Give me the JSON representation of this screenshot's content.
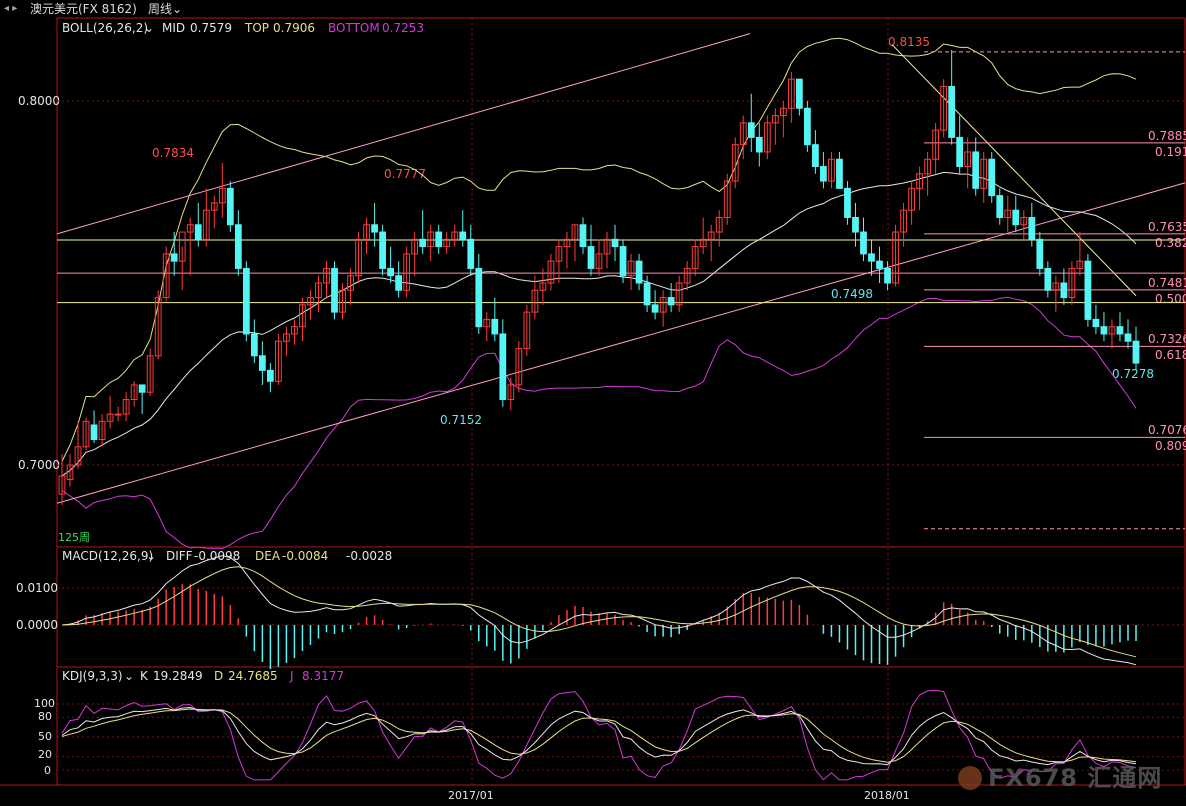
{
  "window": {
    "title": "澳元美元(FX 8162)",
    "period": "周线",
    "period_watermark": "125周",
    "brand_watermark": "FX678 汇通网"
  },
  "chart_data": [
    {
      "panel": "main",
      "type": "candlestick",
      "title": "澳元美元(FX 8162) 周线",
      "indicator": {
        "name": "BOLL(26,26,2)",
        "mid_label": "MID",
        "mid": "0.7579",
        "top_label": "TOP",
        "top": "0.7906",
        "bottom_label": "BOTTOM",
        "bottom": "0.7253"
      },
      "y_ticks": [
        "0.8000",
        "0.7000"
      ],
      "ylim": [
        0.688,
        0.82
      ],
      "x_ticks": [
        "2017/01",
        "2018/01"
      ],
      "price_labels": [
        {
          "text": "0.7834",
          "color": "red"
        },
        {
          "text": "0.7777",
          "color": "red"
        },
        {
          "text": "0.8135",
          "color": "red"
        },
        {
          "text": "0.7152",
          "color": "cyan"
        },
        {
          "text": "0.7498",
          "color": "cyan"
        },
        {
          "text": "0.7278",
          "color": "cyan"
        }
      ],
      "fib_levels": [
        {
          "price": 0.7885,
          "label": "0.7885",
          "ratio": "0.191"
        },
        {
          "price": 0.7635,
          "label": "0.7635",
          "ratio": "0.382"
        },
        {
          "price": 0.7481,
          "label": "0.7481",
          "ratio": "0.500"
        },
        {
          "price": 0.7326,
          "label": "0.7326",
          "ratio": "0.618"
        },
        {
          "price": 0.7076,
          "label": "0.7076",
          "ratio": "0.809"
        }
      ],
      "candles_ohlc": [
        [
          0.692,
          0.703,
          0.689,
          0.697
        ],
        [
          0.696,
          0.703,
          0.694,
          0.7
        ],
        [
          0.7,
          0.712,
          0.699,
          0.705
        ],
        [
          0.705,
          0.713,
          0.704,
          0.712
        ],
        [
          0.711,
          0.715,
          0.706,
          0.707
        ],
        [
          0.707,
          0.714,
          0.705,
          0.712
        ],
        [
          0.712,
          0.719,
          0.71,
          0.714
        ],
        [
          0.714,
          0.716,
          0.712,
          0.714
        ],
        [
          0.714,
          0.72,
          0.712,
          0.718
        ],
        [
          0.718,
          0.723,
          0.716,
          0.722
        ],
        [
          0.722,
          0.722,
          0.714,
          0.72
        ],
        [
          0.72,
          0.732,
          0.719,
          0.73
        ],
        [
          0.73,
          0.748,
          0.729,
          0.746
        ],
        [
          0.746,
          0.76,
          0.745,
          0.758
        ],
        [
          0.758,
          0.764,
          0.752,
          0.756
        ],
        [
          0.756,
          0.76,
          0.748,
          0.764
        ],
        [
          0.764,
          0.768,
          0.752,
          0.766
        ],
        [
          0.766,
          0.772,
          0.76,
          0.762
        ],
        [
          0.762,
          0.776,
          0.76,
          0.77
        ],
        [
          0.77,
          0.774,
          0.765,
          0.772
        ],
        [
          0.772,
          0.783,
          0.768,
          0.776
        ],
        [
          0.776,
          0.778,
          0.764,
          0.766
        ],
        [
          0.766,
          0.77,
          0.752,
          0.754
        ],
        [
          0.754,
          0.756,
          0.734,
          0.736
        ],
        [
          0.736,
          0.74,
          0.728,
          0.73
        ],
        [
          0.73,
          0.734,
          0.722,
          0.726
        ],
        [
          0.726,
          0.728,
          0.72,
          0.723
        ],
        [
          0.723,
          0.736,
          0.722,
          0.734
        ],
        [
          0.734,
          0.738,
          0.73,
          0.736
        ],
        [
          0.736,
          0.74,
          0.733,
          0.738
        ],
        [
          0.738,
          0.746,
          0.734,
          0.744
        ],
        [
          0.744,
          0.748,
          0.74,
          0.746
        ],
        [
          0.746,
          0.752,
          0.742,
          0.75
        ],
        [
          0.75,
          0.756,
          0.746,
          0.754
        ],
        [
          0.754,
          0.756,
          0.74,
          0.742
        ],
        [
          0.742,
          0.75,
          0.74,
          0.748
        ],
        [
          0.748,
          0.754,
          0.744,
          0.752
        ],
        [
          0.752,
          0.764,
          0.75,
          0.762
        ],
        [
          0.762,
          0.768,
          0.758,
          0.766
        ],
        [
          0.766,
          0.772,
          0.76,
          0.764
        ],
        [
          0.764,
          0.766,
          0.752,
          0.754
        ],
        [
          0.754,
          0.76,
          0.75,
          0.752
        ],
        [
          0.752,
          0.756,
          0.746,
          0.748
        ],
        [
          0.748,
          0.76,
          0.746,
          0.758
        ],
        [
          0.758,
          0.764,
          0.752,
          0.762
        ],
        [
          0.762,
          0.77,
          0.758,
          0.76
        ],
        [
          0.76,
          0.766,
          0.756,
          0.764
        ],
        [
          0.764,
          0.766,
          0.758,
          0.76
        ],
        [
          0.76,
          0.764,
          0.758,
          0.762
        ],
        [
          0.762,
          0.766,
          0.76,
          0.764
        ],
        [
          0.764,
          0.77,
          0.76,
          0.762
        ],
        [
          0.762,
          0.766,
          0.752,
          0.754
        ],
        [
          0.754,
          0.758,
          0.736,
          0.738
        ],
        [
          0.738,
          0.742,
          0.734,
          0.74
        ],
        [
          0.74,
          0.746,
          0.734,
          0.736
        ],
        [
          0.736,
          0.74,
          0.716,
          0.718
        ],
        [
          0.718,
          0.724,
          0.715,
          0.722
        ],
        [
          0.722,
          0.734,
          0.72,
          0.732
        ],
        [
          0.732,
          0.744,
          0.73,
          0.742
        ],
        [
          0.742,
          0.752,
          0.74,
          0.748
        ],
        [
          0.748,
          0.754,
          0.744,
          0.75
        ],
        [
          0.75,
          0.758,
          0.748,
          0.756
        ],
        [
          0.756,
          0.762,
          0.75,
          0.76
        ],
        [
          0.76,
          0.764,
          0.754,
          0.762
        ],
        [
          0.762,
          0.766,
          0.756,
          0.766
        ],
        [
          0.766,
          0.768,
          0.758,
          0.76
        ],
        [
          0.76,
          0.766,
          0.752,
          0.754
        ],
        [
          0.754,
          0.762,
          0.752,
          0.758
        ],
        [
          0.758,
          0.764,
          0.754,
          0.762
        ],
        [
          0.762,
          0.766,
          0.756,
          0.76
        ],
        [
          0.76,
          0.762,
          0.75,
          0.752
        ],
        [
          0.752,
          0.758,
          0.748,
          0.756
        ],
        [
          0.756,
          0.758,
          0.748,
          0.75
        ],
        [
          0.75,
          0.752,
          0.742,
          0.744
        ],
        [
          0.744,
          0.748,
          0.74,
          0.742
        ],
        [
          0.742,
          0.748,
          0.738,
          0.746
        ],
        [
          0.746,
          0.75,
          0.742,
          0.744
        ],
        [
          0.744,
          0.752,
          0.742,
          0.75
        ],
        [
          0.75,
          0.756,
          0.748,
          0.754
        ],
        [
          0.754,
          0.762,
          0.752,
          0.76
        ],
        [
          0.76,
          0.768,
          0.758,
          0.762
        ],
        [
          0.762,
          0.766,
          0.756,
          0.764
        ],
        [
          0.764,
          0.77,
          0.76,
          0.768
        ],
        [
          0.768,
          0.78,
          0.766,
          0.778
        ],
        [
          0.778,
          0.79,
          0.776,
          0.788
        ],
        [
          0.788,
          0.796,
          0.784,
          0.794
        ],
        [
          0.794,
          0.802,
          0.786,
          0.79
        ],
        [
          0.79,
          0.794,
          0.782,
          0.786
        ],
        [
          0.786,
          0.796,
          0.784,
          0.794
        ],
        [
          0.794,
          0.798,
          0.788,
          0.796
        ],
        [
          0.796,
          0.8,
          0.79,
          0.798
        ],
        [
          0.798,
          0.808,
          0.794,
          0.806
        ],
        [
          0.806,
          0.806,
          0.796,
          0.798
        ],
        [
          0.798,
          0.8,
          0.786,
          0.788
        ],
        [
          0.788,
          0.792,
          0.78,
          0.782
        ],
        [
          0.782,
          0.786,
          0.776,
          0.778
        ],
        [
          0.778,
          0.786,
          0.776,
          0.784
        ],
        [
          0.784,
          0.786,
          0.776,
          0.776
        ],
        [
          0.776,
          0.778,
          0.766,
          0.768
        ],
        [
          0.768,
          0.772,
          0.76,
          0.764
        ],
        [
          0.764,
          0.768,
          0.756,
          0.758
        ],
        [
          0.758,
          0.762,
          0.752,
          0.756
        ],
        [
          0.756,
          0.76,
          0.75,
          0.754
        ],
        [
          0.754,
          0.756,
          0.748,
          0.75
        ],
        [
          0.75,
          0.766,
          0.749,
          0.764
        ],
        [
          0.764,
          0.772,
          0.76,
          0.77
        ],
        [
          0.77,
          0.778,
          0.766,
          0.776
        ],
        [
          0.776,
          0.782,
          0.77,
          0.78
        ],
        [
          0.78,
          0.786,
          0.774,
          0.784
        ],
        [
          0.784,
          0.794,
          0.78,
          0.792
        ],
        [
          0.792,
          0.806,
          0.79,
          0.804
        ],
        [
          0.804,
          0.814,
          0.788,
          0.79
        ],
        [
          0.79,
          0.796,
          0.78,
          0.782
        ],
        [
          0.782,
          0.79,
          0.776,
          0.786
        ],
        [
          0.786,
          0.79,
          0.774,
          0.776
        ],
        [
          0.776,
          0.786,
          0.772,
          0.784
        ],
        [
          0.784,
          0.786,
          0.772,
          0.774
        ],
        [
          0.774,
          0.776,
          0.766,
          0.768
        ],
        [
          0.768,
          0.774,
          0.764,
          0.77
        ],
        [
          0.77,
          0.774,
          0.764,
          0.766
        ],
        [
          0.766,
          0.77,
          0.762,
          0.768
        ],
        [
          0.768,
          0.772,
          0.76,
          0.762
        ],
        [
          0.762,
          0.764,
          0.752,
          0.754
        ],
        [
          0.754,
          0.756,
          0.746,
          0.748
        ],
        [
          0.748,
          0.752,
          0.742,
          0.75
        ],
        [
          0.75,
          0.754,
          0.744,
          0.746
        ],
        [
          0.746,
          0.756,
          0.744,
          0.754
        ],
        [
          0.754,
          0.764,
          0.752,
          0.756
        ],
        [
          0.756,
          0.758,
          0.738,
          0.74
        ],
        [
          0.74,
          0.744,
          0.736,
          0.738
        ],
        [
          0.738,
          0.742,
          0.734,
          0.736
        ],
        [
          0.736,
          0.74,
          0.732,
          0.738
        ],
        [
          0.738,
          0.742,
          0.734,
          0.736
        ],
        [
          0.736,
          0.74,
          0.732,
          0.734
        ],
        [
          0.734,
          0.738,
          0.726,
          0.728
        ]
      ]
    },
    {
      "panel": "macd",
      "type": "bar+line",
      "indicator": {
        "name": "MACD(12,26,9)",
        "diff_label": "DIFF",
        "diff": "-0.0098",
        "dea_label": "DEA",
        "dea": "-0.0084",
        "macd": "-0.0028"
      },
      "y_ticks": [
        "0.0100",
        "0.0000"
      ],
      "ylim": [
        -0.011,
        0.016
      ]
    },
    {
      "panel": "kdj",
      "type": "line",
      "indicator": {
        "name": "KDJ(9,3,3)",
        "k_label": "K",
        "k": "19.2849",
        "d_label": "D",
        "d": "24.7685",
        "j_label": "J",
        "j": "8.3177"
      },
      "y_ticks": [
        "100",
        "80",
        "50",
        "20",
        "0"
      ],
      "ylim": [
        -20,
        130
      ]
    }
  ],
  "colors": {
    "up": "#ff3b3b",
    "down": "#54f5f5",
    "boll_mid": "#e8e8e8",
    "boll_top": "#e6e08a",
    "boll_bottom": "#d23ad8",
    "trend": "#ff9fc9",
    "fib_line": "#ff8fb8",
    "yellow_line": "#f7f39b",
    "grid": "#7a0f0f",
    "axis": "#b31414",
    "text_main": "#e6e6e6",
    "text_label_red": "#ff4b4b",
    "text_label_cyan": "#5fe8f2"
  }
}
